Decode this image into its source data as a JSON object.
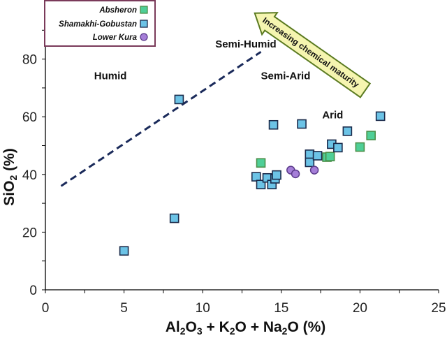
{
  "chart_data": {
    "type": "scatter",
    "xlabel_parts": [
      "Al",
      "2",
      "O",
      "3",
      " + K",
      "2",
      "O + Na",
      "2",
      "O (%)"
    ],
    "ylabel_parts": [
      "SiO",
      "2",
      " (%)"
    ],
    "xlim": [
      0,
      25
    ],
    "ylim": [
      0,
      100
    ],
    "xticks": [
      0,
      5,
      10,
      15,
      20,
      25
    ],
    "yticks": [
      0,
      20,
      40,
      60,
      80
    ],
    "grid": false,
    "legend_position": "top-left",
    "series": [
      {
        "name": "Absheron",
        "marker": "square",
        "fill": "#4fcf97",
        "stroke": "#4a8f48",
        "points": [
          [
            13.7,
            44.0
          ],
          [
            17.9,
            46.0
          ],
          [
            18.1,
            46.2
          ],
          [
            20.0,
            49.5
          ],
          [
            20.7,
            53.5
          ]
        ]
      },
      {
        "name": "Shamakhi-Gobustan",
        "marker": "square",
        "fill": "#6cc3e6",
        "stroke": "#1a2a4a",
        "points": [
          [
            5.0,
            13.5
          ],
          [
            8.2,
            24.8
          ],
          [
            8.5,
            66.0
          ],
          [
            13.4,
            39.2
          ],
          [
            13.7,
            36.5
          ],
          [
            14.1,
            38.8
          ],
          [
            14.4,
            36.5
          ],
          [
            14.5,
            57.2
          ],
          [
            14.6,
            38.5
          ],
          [
            14.7,
            39.8
          ],
          [
            16.3,
            57.5
          ],
          [
            16.8,
            47.0
          ],
          [
            16.8,
            44.2
          ],
          [
            17.3,
            46.5
          ],
          [
            18.2,
            50.5
          ],
          [
            18.6,
            49.3
          ],
          [
            19.2,
            55.0
          ],
          [
            21.3,
            60.2
          ]
        ]
      },
      {
        "name": "Lower Kura",
        "marker": "circle",
        "fill": "#a57ed8",
        "stroke": "#5a3a8a",
        "points": [
          [
            15.6,
            41.5
          ],
          [
            15.9,
            40.2
          ],
          [
            17.1,
            41.5
          ]
        ]
      }
    ],
    "boundary_line": {
      "from": [
        1.0,
        36.0
      ],
      "to": [
        13.7,
        82.5
      ],
      "style": "dashed",
      "color": "#1a2a5a"
    },
    "regions": [
      {
        "label": "Humid",
        "at": [
          3.1,
          73.0
        ]
      },
      {
        "label": "Semi-Humid",
        "at": [
          10.8,
          84.0
        ]
      },
      {
        "label": "Semi-Arid",
        "at": [
          13.7,
          73.0
        ]
      },
      {
        "label": "Arid",
        "at": [
          17.6,
          59.5
        ]
      }
    ],
    "arrow": {
      "label": "Increasing chemical maturity",
      "fill": "#f5f5b0",
      "stroke": "#5a7a20"
    }
  }
}
